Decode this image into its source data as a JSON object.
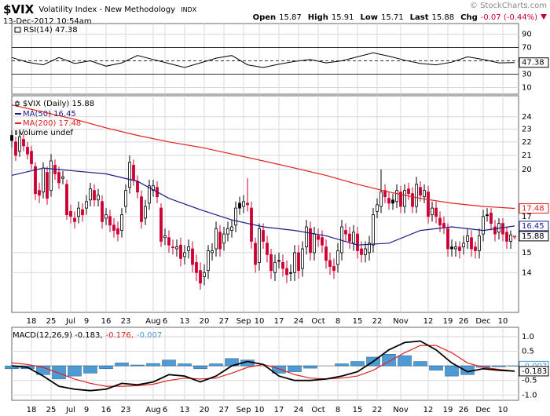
{
  "header": {
    "symbol": "$VIX",
    "name": "Volatility Index - New Methodology",
    "exchange": "INDX",
    "date": "13-Dec-2012 10:54am",
    "copyright": "© StockCharts.com",
    "quote": [
      {
        "label": "Open",
        "value": 15.87
      },
      {
        "label": "High",
        "value": 15.91
      },
      {
        "label": "Low",
        "value": 15.71
      },
      {
        "label": "Last",
        "value": 15.88
      },
      {
        "label": "Chg",
        "value": -0.07,
        "value_label": "-0.07 (-0.44%)"
      }
    ]
  },
  "chart_data": [
    {
      "type": "line",
      "ylim": [
        0,
        100
      ],
      "yticks": [
        90,
        70,
        30,
        10
      ],
      "reference_lines": [
        70,
        50,
        30
      ],
      "x": [
        0,
        4,
        8,
        12,
        16,
        20,
        24,
        28,
        32,
        36,
        40,
        44,
        48,
        52,
        56,
        60,
        64,
        68,
        72,
        76,
        80,
        84,
        88,
        92,
        96,
        100,
        104,
        108,
        112,
        116,
        120,
        124,
        128
      ],
      "series": [
        {
          "name": "RSI(14) 47.38",
          "color": "#000000",
          "last": 47.38,
          "values": [
            55,
            48,
            44,
            55,
            46,
            50,
            42,
            47,
            58,
            52,
            46,
            40,
            47,
            54,
            58,
            44,
            40,
            45,
            49,
            52,
            47,
            50,
            56,
            62,
            57,
            51,
            46,
            44,
            48,
            56,
            52,
            47,
            47.38
          ]
        }
      ]
    },
    {
      "type": "candlestick",
      "name": "$VIX (Daily) 15.88",
      "last": 15.88,
      "volume_legend": "Volume undef",
      "up_color": "#000000",
      "down_color": "#cc0033",
      "log_scale": true,
      "grid": true,
      "xlim": [
        0,
        129
      ],
      "ylim": [
        12.3,
        25.6
      ],
      "yticks": [
        24,
        23,
        22,
        21,
        20,
        17,
        15,
        14
      ],
      "xticks": [
        {
          "value": 5,
          "label": "18"
        },
        {
          "value": 10,
          "label": "25"
        },
        {
          "value": 15,
          "label": "Jul"
        },
        {
          "value": 19,
          "label": "9"
        },
        {
          "value": 24,
          "label": "16"
        },
        {
          "value": 29,
          "label": "23"
        },
        {
          "value": 36,
          "label": "Aug"
        },
        {
          "value": 39,
          "label": "6"
        },
        {
          "value": 44,
          "label": "13"
        },
        {
          "value": 49,
          "label": "20"
        },
        {
          "value": 54,
          "label": "27"
        },
        {
          "value": 59,
          "label": "Sep"
        },
        {
          "value": 63,
          "label": "10"
        },
        {
          "value": 68,
          "label": "17"
        },
        {
          "value": 73,
          "label": "24"
        },
        {
          "value": 78,
          "label": "Oct"
        },
        {
          "value": 83,
          "label": "8"
        },
        {
          "value": 88,
          "label": "15"
        },
        {
          "value": 93,
          "label": "22"
        },
        {
          "value": 99,
          "label": "Nov"
        },
        {
          "value": 106,
          "label": "12"
        },
        {
          "value": 111,
          "label": "19"
        },
        {
          "value": 115,
          "label": "26"
        },
        {
          "value": 120,
          "label": "Dec"
        },
        {
          "value": 125,
          "label": "10"
        }
      ],
      "open": [
        22.5,
        22.0,
        21.3,
        22.2,
        21.6,
        21.3,
        20.2,
        18.6,
        18.5,
        19.8,
        18.6,
        20.3,
        19.8,
        19.4,
        19.0,
        17.3,
        16.9,
        17.0,
        17.4,
        17.5,
        18.0,
        18.6,
        18.0,
        17.9,
        16.9,
        17.0,
        16.5,
        16.3,
        16.2,
        17.6,
        18.8,
        20.3,
        19.2,
        18.2,
        16.9,
        17.8,
        18.6,
        18.8,
        17.5,
        15.8,
        15.8,
        15.3,
        15.2,
        15.4,
        14.8,
        15.1,
        15.2,
        14.5,
        14.1,
        13.8,
        14.1,
        15.0,
        15.2,
        16.1,
        15.5,
        16.0,
        16.2,
        16.5,
        17.8,
        17.6,
        17.8,
        17.5,
        15.5,
        14.5,
        16.2,
        15.5,
        14.9,
        14.0,
        14.6,
        14.5,
        14.2,
        14.0,
        14.0,
        15.0,
        14.2,
        15.3,
        16.3,
        15.0,
        15.9,
        15.8,
        15.3,
        14.6,
        14.3,
        14.4,
        15.0,
        16.2,
        16.0,
        15.5,
        16.0,
        15.2,
        14.9,
        15.0,
        15.4,
        17.3,
        17.6,
        18.6,
        18.1,
        18.0,
        17.9,
        18.5,
        17.6,
        18.7,
        18.4,
        17.6,
        18.8,
        18.2,
        18.5,
        17.1,
        17.5,
        16.9,
        16.6,
        16.3,
        15.3,
        15.2,
        15.3,
        15.3,
        15.6,
        15.8,
        15.3,
        15.1,
        16.0,
        17.1,
        17.2,
        16.4,
        16.1,
        16.6,
        16.1,
        15.6,
        15.87
      ],
      "high": [
        22.9,
        22.4,
        22.9,
        22.6,
        22.0,
        21.7,
        20.5,
        19.1,
        20.5,
        20.2,
        21.1,
        20.7,
        20.2,
        19.9,
        19.3,
        17.7,
        17.3,
        17.9,
        17.8,
        18.3,
        19.1,
        19.0,
        18.7,
        18.3,
        17.5,
        17.4,
        16.9,
        16.7,
        17.5,
        19.0,
        21.0,
        20.7,
        19.6,
        18.6,
        18.0,
        19.3,
        19.3,
        19.2,
        17.8,
        16.3,
        16.2,
        15.7,
        15.7,
        15.8,
        15.4,
        15.7,
        15.6,
        14.9,
        14.5,
        14.4,
        15.4,
        15.5,
        16.7,
        16.5,
        16.4,
        16.7,
        16.8,
        17.9,
        18.2,
        18.3,
        19.4,
        17.9,
        15.8,
        16.6,
        16.6,
        15.9,
        15.2,
        14.9,
        15.0,
        14.9,
        14.6,
        14.4,
        15.4,
        15.4,
        15.6,
        16.8,
        16.7,
        16.4,
        16.3,
        16.2,
        15.7,
        15.0,
        14.7,
        15.5,
        16.8,
        16.6,
        16.4,
        16.5,
        16.4,
        15.6,
        15.6,
        15.9,
        17.5,
        18.1,
        20.0,
        19.0,
        18.5,
        18.4,
        19.0,
        18.9,
        19.0,
        19.1,
        18.8,
        19.5,
        19.2,
        19.0,
        18.9,
        17.9,
        17.9,
        17.3,
        17.0,
        16.6,
        15.7,
        15.6,
        15.6,
        15.9,
        16.3,
        16.2,
        15.6,
        16.3,
        17.4,
        17.5,
        17.5,
        16.8,
        16.9,
        16.9,
        16.4,
        16.2,
        15.91
      ],
      "low": [
        21.6,
        20.6,
        20.9,
        21.3,
        20.7,
        20.0,
        18.0,
        17.8,
        18.1,
        17.7,
        18.2,
        19.3,
        18.7,
        19.0,
        16.8,
        16.6,
        16.3,
        16.6,
        16.7,
        17.1,
        17.6,
        17.6,
        17.6,
        16.3,
        16.5,
        16.1,
        15.8,
        15.6,
        15.8,
        17.2,
        18.4,
        18.9,
        18.1,
        16.3,
        16.5,
        17.4,
        18.2,
        17.8,
        15.3,
        15.4,
        15.0,
        14.9,
        14.8,
        14.3,
        14.4,
        14.7,
        14.0,
        13.6,
        13.2,
        13.4,
        13.7,
        14.6,
        14.8,
        14.8,
        15.1,
        15.6,
        15.8,
        16.1,
        17.1,
        17.2,
        17.3,
        15.2,
        14.0,
        14.1,
        15.2,
        14.5,
        13.7,
        13.6,
        14.2,
        13.8,
        13.5,
        13.6,
        13.6,
        13.7,
        13.8,
        14.9,
        14.6,
        14.6,
        15.3,
        15.0,
        14.2,
        13.9,
        13.7,
        14.0,
        14.6,
        15.6,
        15.2,
        15.1,
        14.7,
        14.5,
        14.5,
        14.6,
        15.0,
        16.9,
        17.2,
        17.8,
        17.4,
        17.4,
        17.5,
        17.2,
        17.2,
        18.0,
        17.2,
        17.2,
        17.9,
        17.8,
        16.6,
        16.7,
        16.6,
        16.1,
        16.0,
        14.8,
        14.8,
        14.8,
        14.7,
        14.9,
        15.2,
        14.8,
        14.7,
        14.7,
        15.6,
        16.7,
        16.2,
        15.6,
        15.7,
        15.6,
        15.2,
        15.2,
        15.71
      ],
      "close": [
        22.1,
        21.0,
        22.4,
        21.7,
        21.1,
        20.4,
        18.4,
        18.3,
        20.1,
        18.1,
        20.6,
        19.7,
        19.1,
        19.5,
        17.1,
        17.0,
        16.7,
        17.5,
        17.1,
        17.9,
        18.7,
        18.0,
        18.3,
        16.7,
        17.1,
        16.5,
        16.2,
        16.0,
        17.1,
        18.6,
        20.5,
        19.3,
        18.5,
        16.7,
        17.6,
        18.9,
        18.9,
        18.2,
        15.6,
        15.9,
        15.4,
        15.3,
        15.3,
        14.7,
        15.0,
        15.3,
        14.4,
        14.0,
        13.5,
        14.0,
        15.1,
        15.1,
        16.3,
        15.2,
        16.0,
        16.3,
        16.4,
        17.5,
        17.5,
        17.9,
        17.7,
        15.6,
        14.4,
        16.3,
        15.6,
        14.9,
        14.1,
        14.5,
        14.6,
        14.2,
        13.9,
        14.0,
        15.0,
        14.1,
        15.2,
        16.4,
        15.0,
        16.0,
        15.7,
        15.4,
        14.6,
        14.3,
        14.1,
        15.1,
        16.4,
        16.0,
        15.6,
        16.1,
        15.1,
        14.9,
        15.2,
        15.5,
        17.1,
        17.7,
        18.5,
        18.2,
        17.8,
        17.8,
        18.6,
        17.6,
        18.6,
        18.4,
        17.6,
        19.0,
        18.3,
        18.6,
        17.0,
        17.5,
        17.0,
        16.5,
        16.4,
        15.2,
        15.2,
        15.3,
        15.1,
        15.5,
        15.9,
        15.2,
        15.1,
        15.9,
        17.0,
        17.1,
        16.6,
        16.0,
        16.6,
        16.0,
        15.6,
        15.95,
        15.88
      ],
      "series": [
        {
          "name": "MA(50) 16.45",
          "color": "#1a1a8c",
          "last": 16.45,
          "x": [
            0,
            8,
            16,
            24,
            32,
            40,
            48,
            56,
            64,
            72,
            80,
            88,
            96,
            104,
            112,
            120,
            128
          ],
          "values": [
            19.6,
            20.1,
            19.9,
            19.7,
            19.2,
            18.1,
            17.4,
            16.8,
            16.4,
            16.2,
            15.9,
            15.4,
            15.5,
            16.2,
            16.4,
            16.2,
            16.45
          ]
        },
        {
          "name": "MA(200) 17.48",
          "color": "#e02020",
          "last": 17.48,
          "x": [
            0,
            8,
            16,
            24,
            32,
            40,
            48,
            56,
            64,
            72,
            80,
            88,
            96,
            104,
            112,
            120,
            128
          ],
          "values": [
            25.0,
            24.4,
            23.8,
            23.1,
            22.5,
            22.0,
            21.6,
            21.1,
            20.6,
            20.1,
            19.6,
            19.0,
            18.5,
            18.1,
            17.8,
            17.6,
            17.48
          ]
        }
      ]
    },
    {
      "type": "macd",
      "ylim": [
        -1.18,
        1.24
      ],
      "yticks": [
        {
          "value": 1,
          "label": "1.0"
        },
        0.5,
        -0.5,
        {
          "value": -1,
          "label": "-1.0"
        }
      ],
      "x": [
        0,
        4,
        8,
        12,
        16,
        20,
        24,
        28,
        32,
        36,
        40,
        44,
        48,
        52,
        56,
        60,
        64,
        68,
        72,
        76,
        80,
        84,
        88,
        92,
        96,
        100,
        104,
        108,
        112,
        116,
        120,
        124,
        128
      ],
      "series": [
        {
          "name": "-0.007",
          "color": "#4d9ad4",
          "kind": "bar",
          "last": -0.007,
          "values": [
            -0.1,
            -0.1,
            -0.3,
            -0.45,
            -0.35,
            -0.25,
            -0.1,
            0.1,
            0.03,
            0.08,
            0.2,
            0.07,
            -0.1,
            0.07,
            0.25,
            0.2,
            0.0,
            -0.25,
            -0.2,
            -0.08,
            0.0,
            0.07,
            0.15,
            0.3,
            0.4,
            0.35,
            0.15,
            -0.15,
            -0.35,
            -0.3,
            -0.05,
            -0.03,
            -0.007
          ]
        },
        {
          "name": "-0.176,",
          "color": "#e02020",
          "kind": "line",
          "values": [
            0.1,
            0.05,
            -0.05,
            -0.25,
            -0.45,
            -0.6,
            -0.7,
            -0.7,
            -0.68,
            -0.63,
            -0.5,
            -0.42,
            -0.45,
            -0.42,
            -0.25,
            -0.05,
            0.05,
            -0.1,
            -0.3,
            -0.42,
            -0.45,
            -0.42,
            -0.35,
            -0.15,
            0.15,
            0.45,
            0.7,
            0.7,
            0.45,
            0.1,
            -0.05,
            -0.12,
            -0.176
          ]
        },
        {
          "name": "MACD(12,26,9) -0.183,",
          "color": "#000000",
          "kind": "line",
          "last": -0.183,
          "values": [
            0.0,
            -0.05,
            -0.35,
            -0.7,
            -0.8,
            -0.85,
            -0.8,
            -0.6,
            -0.65,
            -0.55,
            -0.3,
            -0.35,
            -0.55,
            -0.35,
            0.0,
            0.15,
            0.05,
            -0.35,
            -0.5,
            -0.5,
            -0.45,
            -0.35,
            -0.2,
            0.15,
            0.55,
            0.8,
            0.85,
            0.55,
            0.1,
            -0.2,
            -0.1,
            -0.15,
            -0.183
          ]
        }
      ]
    }
  ]
}
